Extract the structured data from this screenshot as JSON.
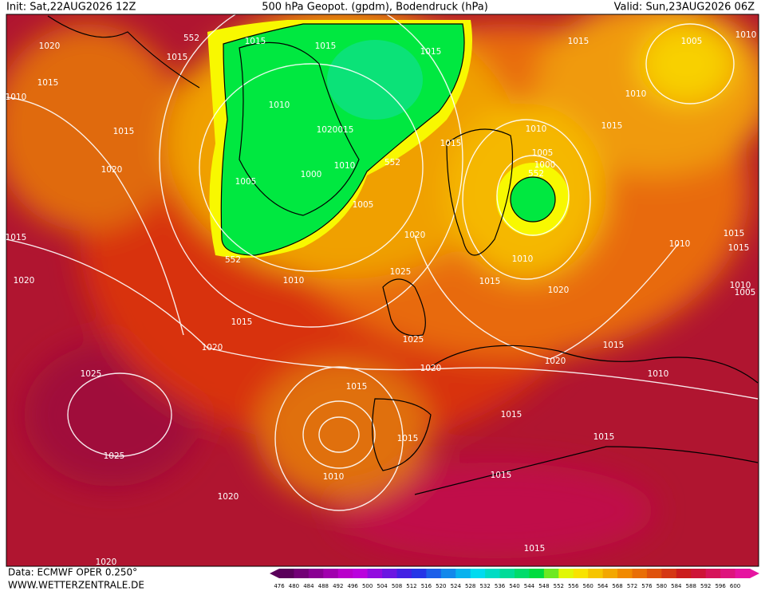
{
  "header": {
    "init": "Init: Sat,22AUG2026 12Z",
    "title": "500 hPa Geopot. (gpdm), Bodendruck (hPa)",
    "valid": "Valid: Sun,23AUG2026 06Z"
  },
  "map": {
    "isobar_labels": [
      "552",
      "1015",
      "1015",
      "1015",
      "1015",
      "1005",
      "1010",
      "1020",
      "1015",
      "1015",
      "1010",
      "1010",
      "1010",
      "1015",
      "1010",
      "1015",
      "1020015",
      "1015",
      "1005",
      "1000",
      "552",
      "1010",
      "1020",
      "1000",
      "552",
      "1005",
      "1005",
      "1015",
      "1020",
      "1015",
      "1010",
      "1015",
      "552",
      "1010",
      "1025",
      "1020",
      "1010",
      "1015",
      "1010",
      "1005",
      "1020",
      "1015",
      "1025",
      "1020",
      "1015",
      "1020",
      "1020",
      "1010",
      "1015",
      "1025",
      "1015",
      "1015",
      "1015",
      "1025",
      "1010",
      "1015",
      "1020",
      "1015",
      "1020"
    ]
  },
  "colorbar": {
    "ticks": [
      476,
      480,
      484,
      488,
      492,
      496,
      500,
      504,
      508,
      512,
      516,
      520,
      524,
      528,
      532,
      536,
      540,
      544,
      548,
      552,
      556,
      560,
      564,
      568,
      572,
      576,
      580,
      584,
      588,
      592,
      596,
      600
    ]
  },
  "footer": {
    "source": "Data: ECMWF OPER 0.250°",
    "website": "WWW.WETTERZENTRALE.DE"
  }
}
